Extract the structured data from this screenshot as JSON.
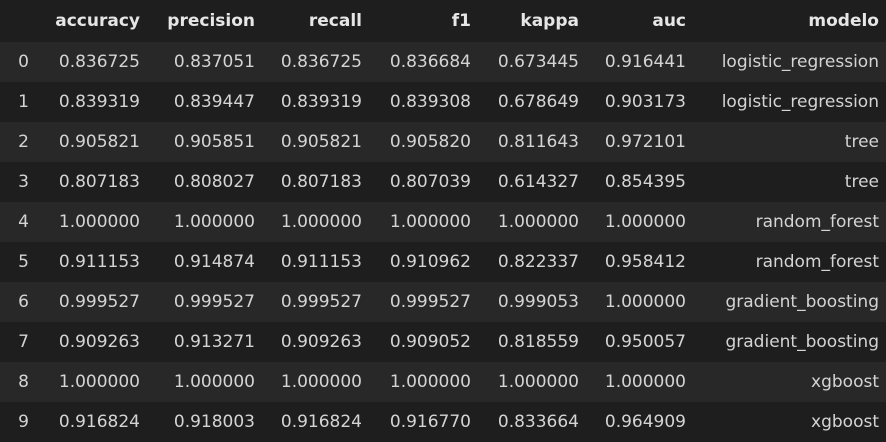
{
  "table": {
    "columns": [
      "accuracy",
      "precision",
      "recall",
      "f1",
      "kappa",
      "auc",
      "modelo"
    ],
    "rows": [
      {
        "index": "0",
        "cells": [
          "0.836725",
          "0.837051",
          "0.836725",
          "0.836684",
          "0.673445",
          "0.916441",
          "logistic_regression"
        ]
      },
      {
        "index": "1",
        "cells": [
          "0.839319",
          "0.839447",
          "0.839319",
          "0.839308",
          "0.678649",
          "0.903173",
          "logistic_regression"
        ]
      },
      {
        "index": "2",
        "cells": [
          "0.905821",
          "0.905851",
          "0.905821",
          "0.905820",
          "0.811643",
          "0.972101",
          "tree"
        ]
      },
      {
        "index": "3",
        "cells": [
          "0.807183",
          "0.808027",
          "0.807183",
          "0.807039",
          "0.614327",
          "0.854395",
          "tree"
        ]
      },
      {
        "index": "4",
        "cells": [
          "1.000000",
          "1.000000",
          "1.000000",
          "1.000000",
          "1.000000",
          "1.000000",
          "random_forest"
        ]
      },
      {
        "index": "5",
        "cells": [
          "0.911153",
          "0.914874",
          "0.911153",
          "0.910962",
          "0.822337",
          "0.958412",
          "random_forest"
        ]
      },
      {
        "index": "6",
        "cells": [
          "0.999527",
          "0.999527",
          "0.999527",
          "0.999527",
          "0.999053",
          "1.000000",
          "gradient_boosting"
        ]
      },
      {
        "index": "7",
        "cells": [
          "0.909263",
          "0.913271",
          "0.909263",
          "0.909052",
          "0.818559",
          "0.950057",
          "gradient_boosting"
        ]
      },
      {
        "index": "8",
        "cells": [
          "1.000000",
          "1.000000",
          "1.000000",
          "1.000000",
          "1.000000",
          "1.000000",
          "xgboost"
        ]
      },
      {
        "index": "9",
        "cells": [
          "0.916824",
          "0.918003",
          "0.916824",
          "0.916770",
          "0.833664",
          "0.964909",
          "xgboost"
        ]
      }
    ]
  },
  "colors": {
    "background": "#1e1e1e",
    "row_stripe": "#282828",
    "text": "#d4d4d4"
  }
}
